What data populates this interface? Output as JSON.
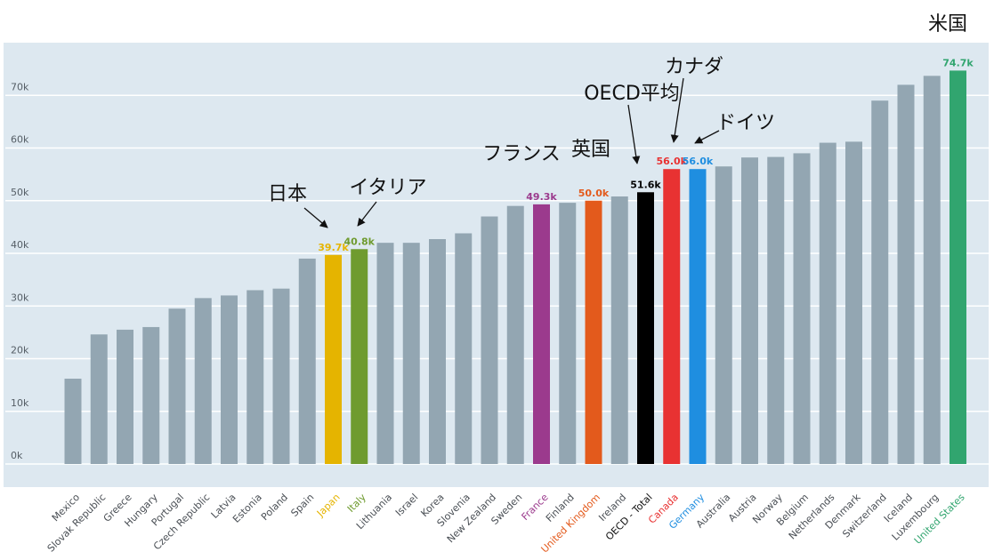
{
  "chart_data": {
    "type": "bar",
    "categories": [
      "Mexico",
      "Slovak Republic",
      "Greece",
      "Hungary",
      "Portugal",
      "Czech Republic",
      "Latvia",
      "Estonia",
      "Poland",
      "Spain",
      "Japan",
      "Italy",
      "Lithuania",
      "Israel",
      "Korea",
      "Slovenia",
      "New Zealand",
      "Sweden",
      "France",
      "Finland",
      "United Kingdom",
      "Ireland",
      "OECD - Total",
      "Canada",
      "Germany",
      "Australia",
      "Austria",
      "Norway",
      "Belgium",
      "Netherlands",
      "Denmark",
      "Switzerland",
      "Iceland",
      "Luxembourg",
      "United States"
    ],
    "values": [
      16.2,
      24.6,
      25.5,
      26.0,
      29.5,
      31.5,
      32.0,
      33.0,
      33.3,
      39.0,
      39.7,
      40.8,
      42.0,
      42.0,
      42.7,
      43.8,
      47.0,
      49.0,
      49.3,
      49.6,
      50.0,
      50.8,
      51.6,
      56.0,
      56.0,
      56.5,
      58.2,
      58.3,
      59.0,
      61.0,
      61.2,
      69.0,
      72.0,
      73.7,
      74.7
    ],
    "ylim": [
      0,
      80
    ],
    "y_ticks": [
      0,
      10,
      20,
      30,
      40,
      50,
      60,
      70
    ],
    "y_tick_labels": [
      "0k",
      "10k",
      "20k",
      "30k",
      "40k",
      "50k",
      "60k",
      "70k"
    ],
    "grid": true,
    "default_color": "#93a6b2",
    "highlights": [
      {
        "category": "Japan",
        "color": "#e5b400",
        "label": "39.7k"
      },
      {
        "category": "Italy",
        "color": "#6f9b2f",
        "label": "40.8k"
      },
      {
        "category": "France",
        "color": "#9b3a8d",
        "label": "49.3k"
      },
      {
        "category": "United Kingdom",
        "color": "#e35a1c",
        "label": "50.0k"
      },
      {
        "category": "OECD - Total",
        "color": "#000000",
        "label": "51.6k"
      },
      {
        "category": "Canada",
        "color": "#e83232",
        "label": "56.0k"
      },
      {
        "category": "Germany",
        "color": "#1f8ee0",
        "label": "56.0k"
      },
      {
        "category": "United States",
        "color": "#31a56f",
        "label": "74.7k"
      }
    ],
    "annotations": [
      {
        "text": "米国",
        "target": "United States",
        "arrow": false
      },
      {
        "text": "カナダ",
        "target": "Canada",
        "arrow": true
      },
      {
        "text": "OECD平均",
        "target": "OECD - Total",
        "arrow": true
      },
      {
        "text": "ドイツ",
        "target": "Germany",
        "arrow": true
      },
      {
        "text": "フランス",
        "target": "France",
        "arrow": false
      },
      {
        "text": "英国",
        "target": "United Kingdom",
        "arrow": false
      },
      {
        "text": "日本",
        "target": "Japan",
        "arrow": true
      },
      {
        "text": "イタリア",
        "target": "Italy",
        "arrow": true
      }
    ]
  }
}
